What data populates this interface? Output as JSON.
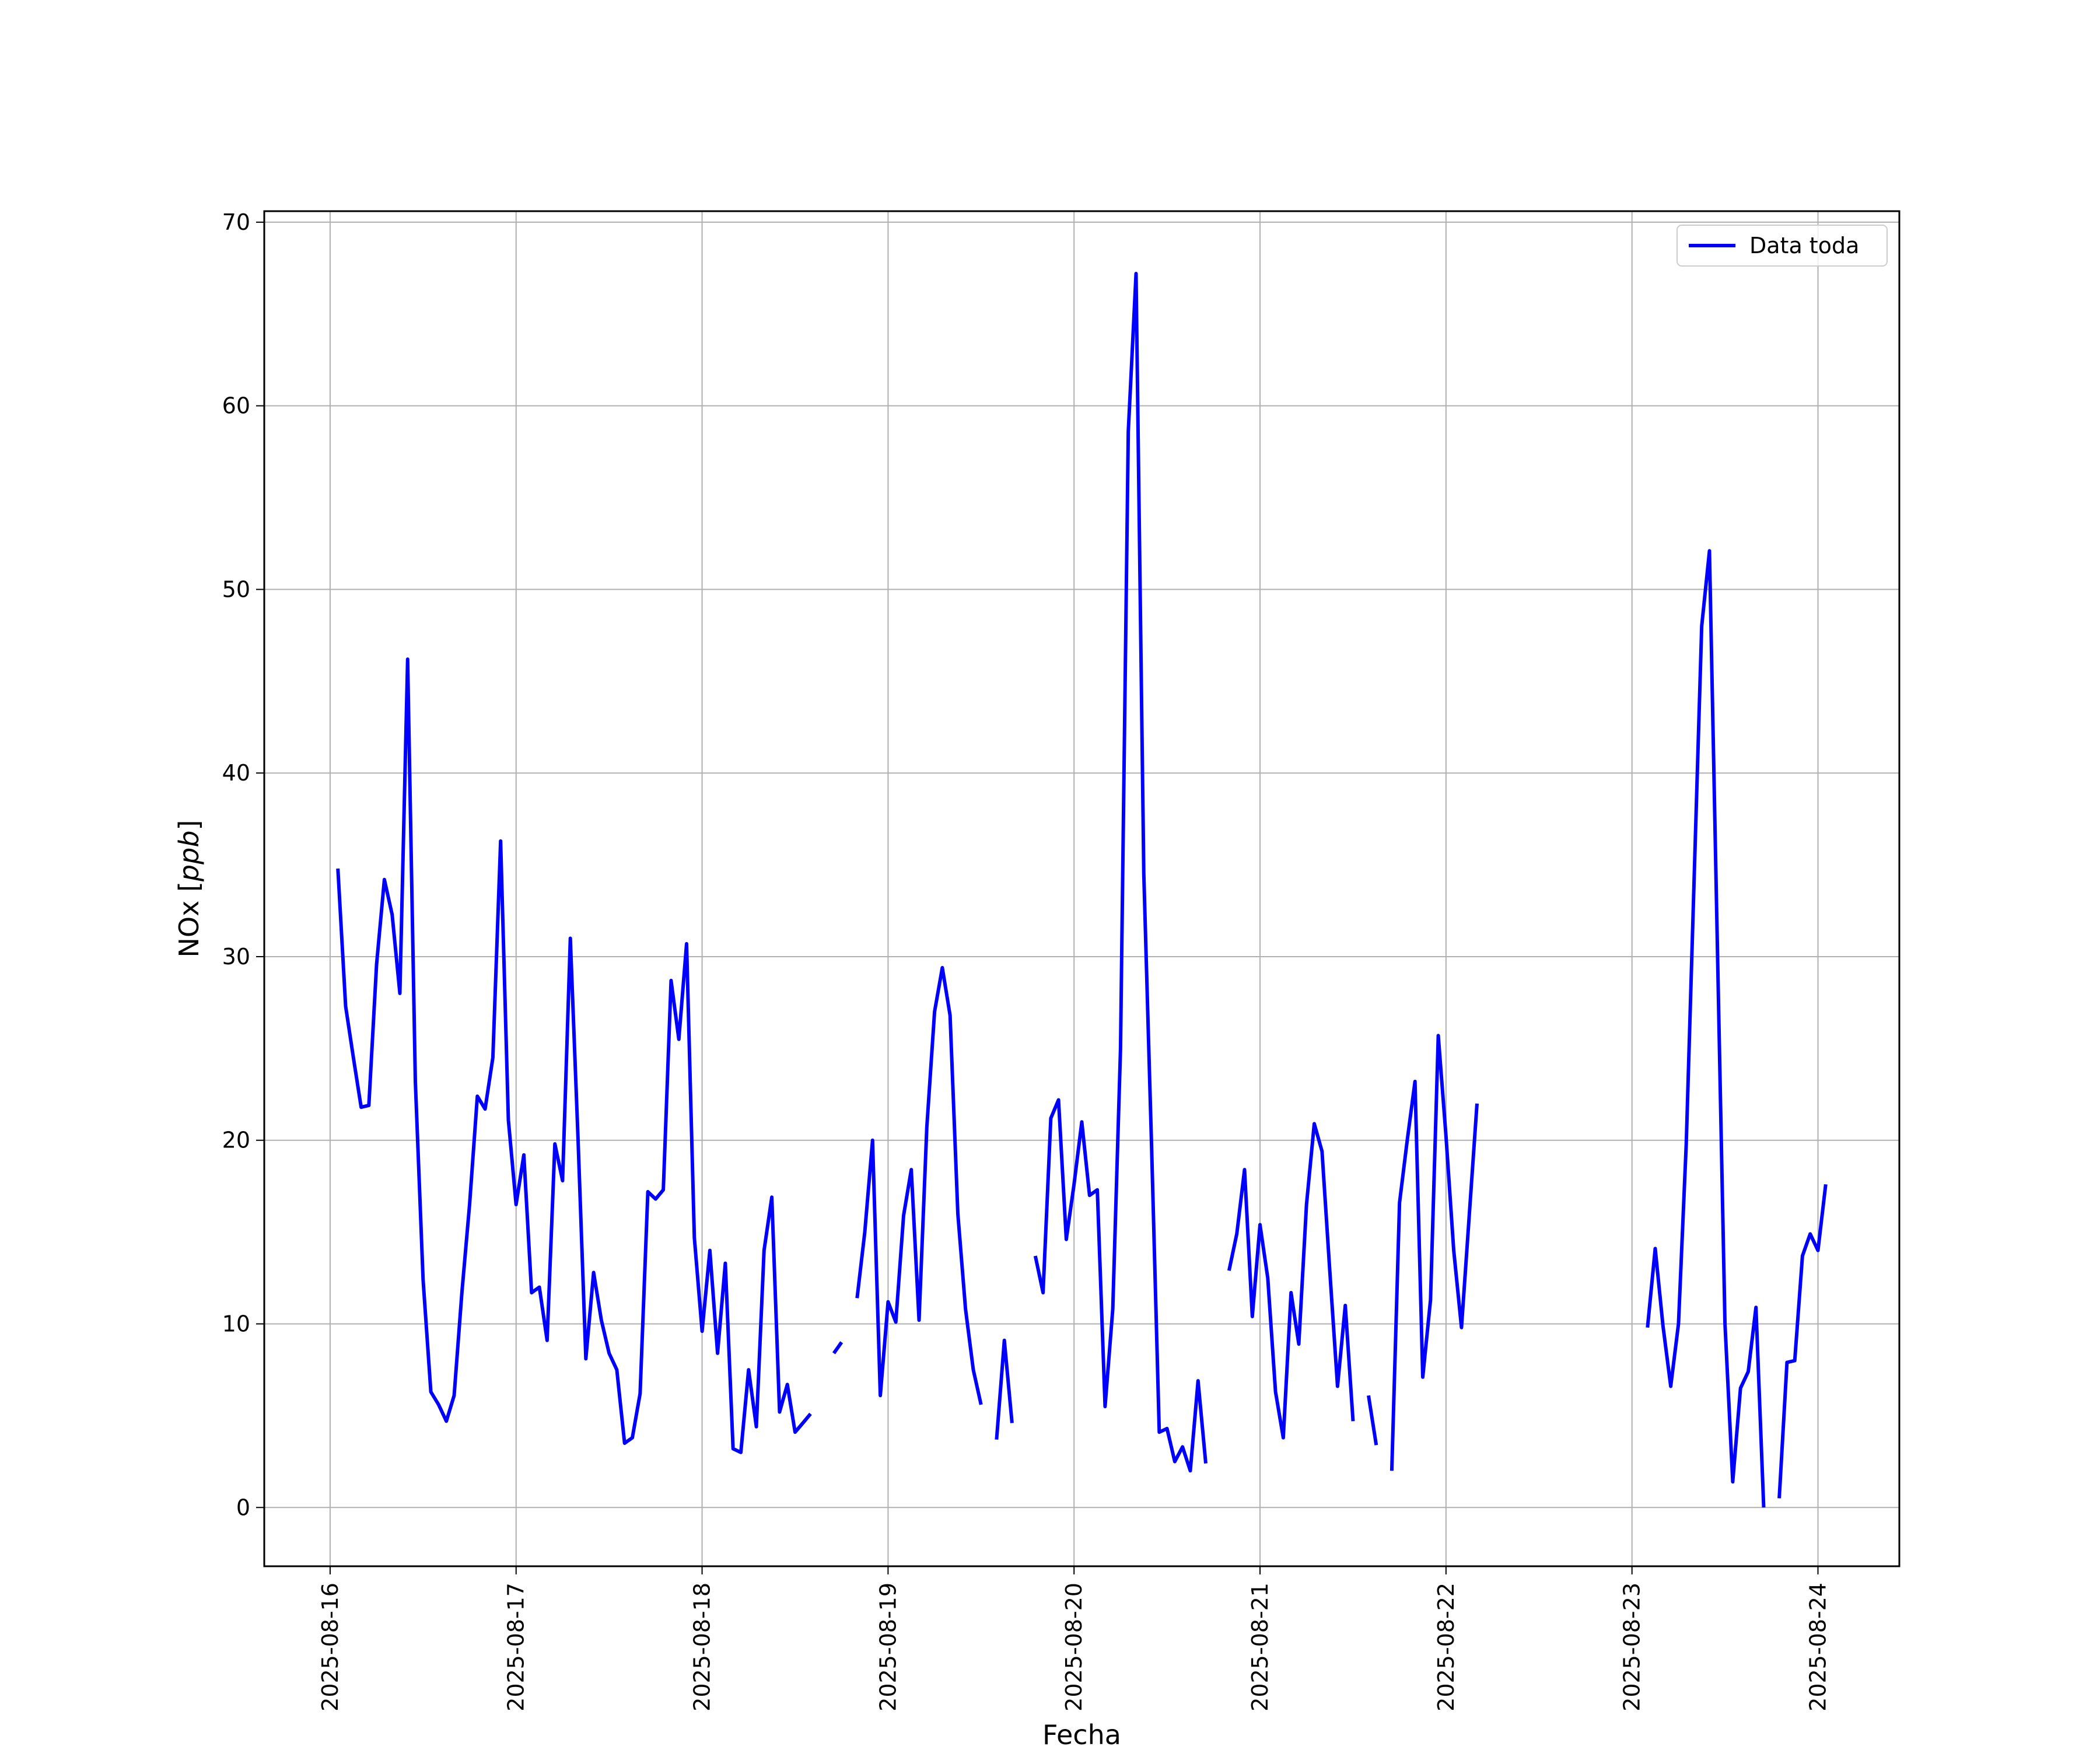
{
  "chart_data": {
    "type": "line",
    "xlabel": "Fecha",
    "ylabel": "NOx [ppb]",
    "ylabel_parts": {
      "name": "NOx [",
      "unit": "ppb",
      "close": "]"
    },
    "x_ticks": [
      "2025-08-16",
      "2025-08-17",
      "2025-08-18",
      "2025-08-19",
      "2025-08-20",
      "2025-08-21",
      "2025-08-22",
      "2025-08-23",
      "2025-08-24"
    ],
    "y_ticks": [
      0,
      10,
      20,
      30,
      40,
      50,
      60,
      70
    ],
    "xlim": [
      "2025-08-15T15:30",
      "2025-08-24T10:30"
    ],
    "ylim": [
      -3.2,
      70.6
    ],
    "grid": true,
    "legend_position": "top-right",
    "series": [
      {
        "name": "Data toda",
        "color": "#0000ff",
        "points": [
          [
            "2025-08-16T01:00",
            34.8
          ],
          [
            "2025-08-16T02:00",
            27.3
          ],
          [
            "2025-08-16T03:00",
            24.5
          ],
          [
            "2025-08-16T04:00",
            21.8
          ],
          [
            "2025-08-16T05:00",
            21.9
          ],
          [
            "2025-08-16T06:00",
            29.6
          ],
          [
            "2025-08-16T07:00",
            34.2
          ],
          [
            "2025-08-16T08:00",
            32.3
          ],
          [
            "2025-08-16T09:00",
            28.0
          ],
          [
            "2025-08-16T10:00",
            46.2
          ],
          [
            "2025-08-16T11:00",
            23.2
          ],
          [
            "2025-08-16T12:00",
            12.4
          ],
          [
            "2025-08-16T13:00",
            6.3
          ],
          [
            "2025-08-16T14:00",
            5.6
          ],
          [
            "2025-08-16T15:00",
            4.7
          ],
          [
            "2025-08-16T16:00",
            6.1
          ],
          [
            "2025-08-16T17:00",
            11.7
          ],
          [
            "2025-08-16T18:00",
            16.5
          ],
          [
            "2025-08-16T19:00",
            22.4
          ],
          [
            "2025-08-16T20:00",
            21.7
          ],
          [
            "2025-08-16T21:00",
            24.5
          ],
          [
            "2025-08-16T22:00",
            36.3
          ],
          [
            "2025-08-16T23:00",
            21.1
          ],
          [
            "2025-08-17T00:00",
            16.5
          ],
          [
            "2025-08-17T01:00",
            19.2
          ],
          [
            "2025-08-17T02:00",
            11.7
          ],
          [
            "2025-08-17T03:00",
            12.0
          ],
          [
            "2025-08-17T04:00",
            9.1
          ],
          [
            "2025-08-17T05:00",
            19.8
          ],
          [
            "2025-08-17T06:00",
            17.8
          ],
          [
            "2025-08-17T07:00",
            31.0
          ],
          [
            "2025-08-17T08:00",
            20.0
          ],
          [
            "2025-08-17T09:00",
            8.1
          ],
          [
            "2025-08-17T10:00",
            12.8
          ],
          [
            "2025-08-17T11:00",
            10.2
          ],
          [
            "2025-08-17T12:00",
            8.4
          ],
          [
            "2025-08-17T13:00",
            7.5
          ],
          [
            "2025-08-17T14:00",
            3.5
          ],
          [
            "2025-08-17T15:00",
            3.8
          ],
          [
            "2025-08-17T16:00",
            6.2
          ],
          [
            "2025-08-17T17:00",
            17.2
          ],
          [
            "2025-08-17T18:00",
            16.8
          ],
          [
            "2025-08-17T19:00",
            17.3
          ],
          [
            "2025-08-17T20:00",
            28.7
          ],
          [
            "2025-08-17T21:00",
            25.5
          ],
          [
            "2025-08-17T22:00",
            30.7
          ],
          [
            "2025-08-17T23:00",
            14.7
          ],
          [
            "2025-08-18T00:00",
            9.6
          ],
          [
            "2025-08-18T01:00",
            14.0
          ],
          [
            "2025-08-18T02:00",
            8.4
          ],
          [
            "2025-08-18T03:00",
            13.3
          ],
          [
            "2025-08-18T04:00",
            3.2
          ],
          [
            "2025-08-18T05:00",
            3.0
          ],
          [
            "2025-08-18T06:00",
            7.5
          ],
          [
            "2025-08-18T07:00",
            4.4
          ],
          [
            "2025-08-18T08:00",
            14.0
          ],
          [
            "2025-08-18T09:00",
            16.9
          ],
          [
            "2025-08-18T10:00",
            5.2
          ],
          [
            "2025-08-18T11:00",
            6.7
          ],
          [
            "2025-08-18T12:00",
            4.1
          ],
          [
            "2025-08-18T13:00",
            4.6
          ],
          [
            "2025-08-18T14:00",
            5.1
          ],
          [
            "2025-08-18T15:00",
            null
          ],
          [
            "2025-08-18T16:00",
            null
          ],
          [
            "2025-08-18T17:00",
            8.4
          ],
          [
            "2025-08-18T18:00",
            9.0
          ],
          [
            "2025-08-18T19:00",
            null
          ],
          [
            "2025-08-18T20:00",
            11.4
          ],
          [
            "2025-08-18T21:00",
            15.0
          ],
          [
            "2025-08-18T22:00",
            20.0
          ],
          [
            "2025-08-18T23:00",
            6.1
          ],
          [
            "2025-08-19T00:00",
            11.2
          ],
          [
            "2025-08-19T01:00",
            10.1
          ],
          [
            "2025-08-19T02:00",
            15.9
          ],
          [
            "2025-08-19T03:00",
            18.4
          ],
          [
            "2025-08-19T04:00",
            10.2
          ],
          [
            "2025-08-19T05:00",
            20.7
          ],
          [
            "2025-08-19T06:00",
            27.0
          ],
          [
            "2025-08-19T07:00",
            29.4
          ],
          [
            "2025-08-19T08:00",
            26.8
          ],
          [
            "2025-08-19T09:00",
            16.0
          ],
          [
            "2025-08-19T10:00",
            10.8
          ],
          [
            "2025-08-19T11:00",
            7.5
          ],
          [
            "2025-08-19T12:00",
            5.6
          ],
          [
            "2025-08-19T13:00",
            null
          ],
          [
            "2025-08-19T14:00",
            3.7
          ],
          [
            "2025-08-19T15:00",
            9.1
          ],
          [
            "2025-08-19T16:00",
            4.6
          ],
          [
            "2025-08-19T17:00",
            null
          ],
          [
            "2025-08-19T18:00",
            null
          ],
          [
            "2025-08-19T19:00",
            13.7
          ],
          [
            "2025-08-19T20:00",
            11.7
          ],
          [
            "2025-08-19T21:00",
            21.2
          ],
          [
            "2025-08-19T22:00",
            22.2
          ],
          [
            "2025-08-19T23:00",
            14.6
          ],
          [
            "2025-08-20T00:00",
            17.6
          ],
          [
            "2025-08-20T01:00",
            21.0
          ],
          [
            "2025-08-20T02:00",
            17.0
          ],
          [
            "2025-08-20T03:00",
            17.3
          ],
          [
            "2025-08-20T04:00",
            5.5
          ],
          [
            "2025-08-20T05:00",
            10.8
          ],
          [
            "2025-08-20T06:00",
            25.0
          ],
          [
            "2025-08-20T07:00",
            58.6
          ],
          [
            "2025-08-20T08:00",
            67.2
          ],
          [
            "2025-08-20T09:00",
            34.5
          ],
          [
            "2025-08-20T10:00",
            19.7
          ],
          [
            "2025-08-20T11:00",
            4.1
          ],
          [
            "2025-08-20T12:00",
            4.3
          ],
          [
            "2025-08-20T13:00",
            2.5
          ],
          [
            "2025-08-20T14:00",
            3.3
          ],
          [
            "2025-08-20T15:00",
            2.0
          ],
          [
            "2025-08-20T16:00",
            6.9
          ],
          [
            "2025-08-20T17:00",
            2.4
          ],
          [
            "2025-08-20T18:00",
            null
          ],
          [
            "2025-08-20T19:00",
            null
          ],
          [
            "2025-08-20T20:00",
            12.9
          ],
          [
            "2025-08-20T21:00",
            14.9
          ],
          [
            "2025-08-20T22:00",
            18.4
          ],
          [
            "2025-08-20T23:00",
            10.4
          ],
          [
            "2025-08-21T00:00",
            15.4
          ],
          [
            "2025-08-21T01:00",
            12.5
          ],
          [
            "2025-08-21T02:00",
            6.3
          ],
          [
            "2025-08-21T03:00",
            3.8
          ],
          [
            "2025-08-21T04:00",
            11.7
          ],
          [
            "2025-08-21T05:00",
            8.9
          ],
          [
            "2025-08-21T06:00",
            16.5
          ],
          [
            "2025-08-21T07:00",
            20.9
          ],
          [
            "2025-08-21T08:00",
            19.4
          ],
          [
            "2025-08-21T09:00",
            12.9
          ],
          [
            "2025-08-21T10:00",
            6.6
          ],
          [
            "2025-08-21T11:00",
            11.0
          ],
          [
            "2025-08-21T12:00",
            4.7
          ],
          [
            "2025-08-21T13:00",
            null
          ],
          [
            "2025-08-21T14:00",
            6.1
          ],
          [
            "2025-08-21T15:00",
            3.4
          ],
          [
            "2025-08-21T16:00",
            null
          ],
          [
            "2025-08-21T17:00",
            2.0
          ],
          [
            "2025-08-21T18:00",
            16.6
          ],
          [
            "2025-08-21T19:00",
            20.0
          ],
          [
            "2025-08-21T20:00",
            23.2
          ],
          [
            "2025-08-21T21:00",
            7.1
          ],
          [
            "2025-08-21T22:00",
            11.3
          ],
          [
            "2025-08-21T23:00",
            25.7
          ],
          [
            "2025-08-22T00:00",
            20.2
          ],
          [
            "2025-08-22T01:00",
            14.0
          ],
          [
            "2025-08-22T02:00",
            9.8
          ],
          [
            "2025-08-22T03:00",
            15.9
          ],
          [
            "2025-08-22T04:00",
            22.0
          ],
          [
            "2025-08-22T05:00",
            null
          ],
          [
            "2025-08-23T01:00",
            null
          ],
          [
            "2025-08-23T02:00",
            9.8
          ],
          [
            "2025-08-23T03:00",
            14.1
          ],
          [
            "2025-08-23T04:00",
            9.9
          ],
          [
            "2025-08-23T05:00",
            6.6
          ],
          [
            "2025-08-23T06:00",
            10.0
          ],
          [
            "2025-08-23T07:00",
            19.8
          ],
          [
            "2025-08-23T08:00",
            34.0
          ],
          [
            "2025-08-23T09:00",
            48.0
          ],
          [
            "2025-08-23T10:00",
            52.1
          ],
          [
            "2025-08-23T11:00",
            31.0
          ],
          [
            "2025-08-23T12:00",
            10.0
          ],
          [
            "2025-08-23T13:00",
            1.4
          ],
          [
            "2025-08-23T14:00",
            6.5
          ],
          [
            "2025-08-23T15:00",
            7.4
          ],
          [
            "2025-08-23T16:00",
            10.9
          ],
          [
            "2025-08-23T17:00",
            0.0
          ],
          [
            "2025-08-23T18:00",
            null
          ],
          [
            "2025-08-23T19:00",
            0.5
          ],
          [
            "2025-08-23T20:00",
            7.9
          ],
          [
            "2025-08-23T21:00",
            8.0
          ],
          [
            "2025-08-23T22:00",
            13.7
          ],
          [
            "2025-08-23T23:00",
            14.9
          ],
          [
            "2025-08-24T00:00",
            14.0
          ],
          [
            "2025-08-24T01:00",
            17.6
          ]
        ]
      }
    ]
  }
}
